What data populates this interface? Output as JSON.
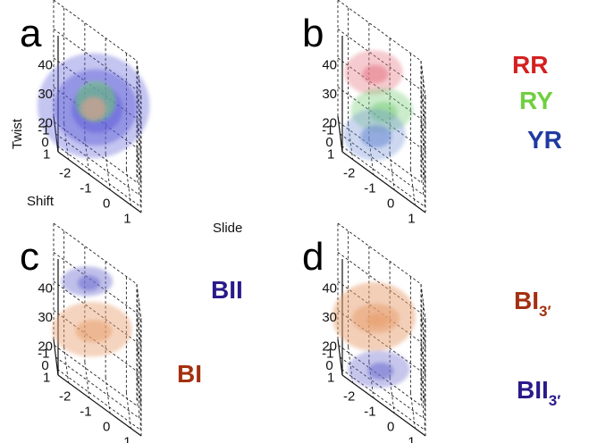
{
  "chart_data": [
    {
      "type": "scatter",
      "panel_label": "a",
      "xlabel": "Slide",
      "ylabel": "Shift",
      "zlabel": "Twist",
      "xlim": [
        -2.5,
        1.5
      ],
      "ylim": [
        -1.5,
        1.5
      ],
      "zlim": [
        10,
        50
      ],
      "xticks": [
        "-2",
        "-1",
        "0",
        "1"
      ],
      "yticks": [
        "-1",
        "0",
        "1"
      ],
      "zticks": [
        "20",
        "30",
        "40"
      ],
      "grid": true,
      "annotations": [],
      "series": [
        {
          "color": "#5a5ad8",
          "center": [
            -0.7,
            0.2,
            30
          ],
          "levels": [
            {
              "rx": 62,
              "ry": 58,
              "opacity": 0.35
            },
            {
              "rx": 46,
              "ry": 42,
              "opacity": 0.45
            },
            {
              "rx": 28,
              "ry": 26,
              "opacity": 0.5
            }
          ]
        },
        {
          "color": "#6fcf6f",
          "center": [
            -0.6,
            0.2,
            32
          ],
          "levels": [
            {
              "rx": 22,
              "ry": 22,
              "opacity": 0.55
            }
          ]
        },
        {
          "color": "#c8a090",
          "center": [
            -0.7,
            0.2,
            29
          ],
          "levels": [
            {
              "rx": 14,
              "ry": 13,
              "opacity": 0.8
            }
          ]
        }
      ]
    },
    {
      "type": "scatter",
      "panel_label": "b",
      "xlim": [
        -2.5,
        1.5
      ],
      "ylim": [
        -1.5,
        1.5
      ],
      "zlim": [
        10,
        50
      ],
      "xticks": [
        "-2",
        "-1",
        "0",
        "1"
      ],
      "yticks": [
        "-1",
        "0",
        "1"
      ],
      "zticks": [
        "20",
        "30",
        "40"
      ],
      "grid": true,
      "annotations": [
        {
          "text": "RR",
          "sub": "",
          "color": "#d42020"
        },
        {
          "text": "RY",
          "sub": "",
          "color": "#6fcf40"
        },
        {
          "text": "YR",
          "sub": "",
          "color": "#1f3aa0"
        }
      ],
      "series": [
        {
          "color": "#e67c88",
          "center": [
            -0.9,
            0.1,
            40
          ],
          "levels": [
            {
              "rx": 32,
              "ry": 24,
              "opacity": 0.4
            },
            {
              "rx": 14,
              "ry": 10,
              "opacity": 0.6
            }
          ]
        },
        {
          "color": "#7cd07c",
          "center": [
            -0.5,
            0.1,
            29
          ],
          "levels": [
            {
              "rx": 34,
              "ry": 24,
              "opacity": 0.4
            },
            {
              "rx": 15,
              "ry": 11,
              "opacity": 0.55
            }
          ]
        },
        {
          "color": "#6e8ed4",
          "center": [
            -0.9,
            0.7,
            21
          ],
          "levels": [
            {
              "rx": 34,
              "ry": 28,
              "opacity": 0.35
            },
            {
              "rx": 17,
              "ry": 12,
              "opacity": 0.6
            }
          ]
        }
      ]
    },
    {
      "type": "scatter",
      "panel_label": "c",
      "xlim": [
        -2.5,
        1.5
      ],
      "ylim": [
        -1.5,
        1.5
      ],
      "zlim": [
        10,
        50
      ],
      "xticks": [
        "-2",
        "-1",
        "0",
        "1"
      ],
      "yticks": [
        "-1",
        "0",
        "1"
      ],
      "zticks": [
        "20",
        "30",
        "40"
      ],
      "grid": true,
      "annotations": [
        {
          "text": "BII",
          "sub": "",
          "color": "#2a1a8a"
        },
        {
          "text": "BI",
          "sub": "",
          "color": "#a33010"
        }
      ],
      "series": [
        {
          "color": "#7070d0",
          "center": [
            -1.0,
            0.0,
            44
          ],
          "levels": [
            {
              "rx": 28,
              "ry": 16,
              "opacity": 0.45
            },
            {
              "rx": 12,
              "ry": 8,
              "opacity": 0.6
            }
          ]
        },
        {
          "color": "#e8a070",
          "center": [
            -0.8,
            0.6,
            31
          ],
          "levels": [
            {
              "rx": 44,
              "ry": 30,
              "opacity": 0.45
            },
            {
              "rx": 20,
              "ry": 12,
              "opacity": 0.55
            }
          ]
        }
      ]
    },
    {
      "type": "scatter",
      "panel_label": "d",
      "xlim": [
        -2.5,
        1.5
      ],
      "ylim": [
        -1.5,
        1.5
      ],
      "zlim": [
        10,
        50
      ],
      "xticks": [
        "-2",
        "-1",
        "0",
        "1"
      ],
      "yticks": [
        "-1",
        "0",
        "1"
      ],
      "zticks": [
        "20",
        "30",
        "40"
      ],
      "grid": true,
      "annotations": [
        {
          "text": "BI",
          "sub": "3′",
          "color": "#a33010"
        },
        {
          "text": "BII",
          "sub": "3′",
          "color": "#2a1a8a"
        }
      ],
      "series": [
        {
          "color": "#e8a070",
          "center": [
            -0.9,
            0.4,
            34
          ],
          "levels": [
            {
              "rx": 46,
              "ry": 38,
              "opacity": 0.5
            },
            {
              "rx": 26,
              "ry": 16,
              "opacity": 0.55
            },
            {
              "rx": 12,
              "ry": 7,
              "opacity": 0.7
            }
          ]
        },
        {
          "color": "#7070d0",
          "center": [
            -0.7,
            0.9,
            19
          ],
          "levels": [
            {
              "rx": 34,
              "ry": 20,
              "opacity": 0.4
            },
            {
              "rx": 14,
              "ry": 9,
              "opacity": 0.6
            }
          ]
        }
      ]
    }
  ]
}
